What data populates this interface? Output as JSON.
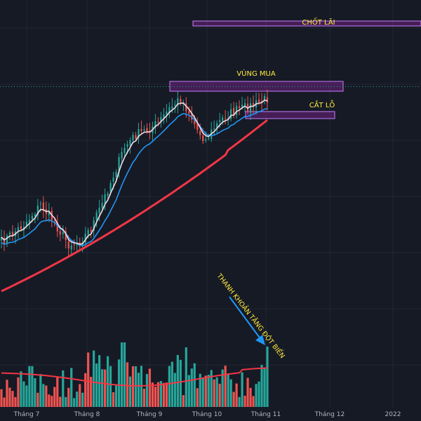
{
  "chart_data": {
    "type": "candlestick",
    "title": "",
    "x_ticks": [
      "Tháng 7",
      "Tháng 8",
      "Tháng 9",
      "Tháng 10",
      "Tháng 11",
      "Tháng 12",
      "2022"
    ],
    "last_price_line": 123.5,
    "zones": [
      {
        "label": "CHỐT LÃI",
        "low": 30,
        "high": 37,
        "color": "#9c27b0"
      },
      {
        "label": "VÙNG MUA",
        "low": 116,
        "high": 130,
        "color": "#9c27b0"
      },
      {
        "label": "CẮT LỖ",
        "low": 159,
        "high": 169,
        "color": "#9c27b0"
      }
    ],
    "annotation": {
      "text": "THANH KHOẢN TĂNG ĐỘT BIẾN",
      "color": "#ffeb3b"
    },
    "moving_averages": [
      {
        "color": "#f0dce4"
      },
      {
        "color": "#2196f3"
      },
      {
        "color": "#f23645"
      }
    ],
    "volume_ma_color": "#f23645",
    "colors": {
      "up": "#26a69a",
      "down": "#ef5350",
      "background": "#161a25",
      "grid": "#232733"
    }
  }
}
